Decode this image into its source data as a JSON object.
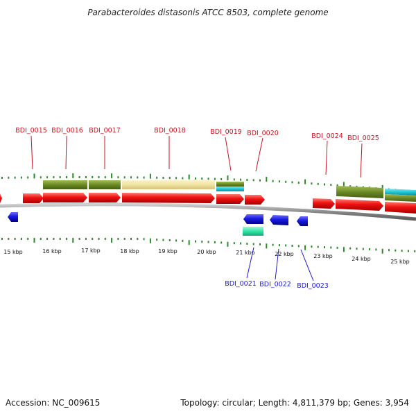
{
  "title": "Parabacteroides distasonis ATCC 8503, complete genome",
  "footer": {
    "accession": "Accession: NC_009615",
    "topology": "Topology: circular; Length: 4,811,379 bp; Genes: 3,954"
  },
  "scale_labels": [
    "15 kbp",
    "16 kbp",
    "17 kbp",
    "18 kbp",
    "19 kbp",
    "20 kbp",
    "21 kbp",
    "22 kbp",
    "23 kbp",
    "24 kbp",
    "25 kbp"
  ],
  "genes_top": [
    "BDI_0015",
    "BDI_0016",
    "BDI_0017",
    "BDI_0018",
    "BDI_0019",
    "BDI_0020",
    "BDI_0024",
    "BDI_0025"
  ],
  "genes_bottom": [
    "BDI_0021",
    "BDI_0022",
    "BDI_0023"
  ],
  "colors": {
    "forward_gene": "#ee1111",
    "reverse_gene": "#1a1ae0",
    "cog_olive": "#6b8a25",
    "cog_khaki": "#efe2a0",
    "cog_cyan": "#22c6d6",
    "cog_green": "#33e6a6",
    "tick_green": "#2a8a2a",
    "top_label": "#c8141e",
    "bottom_label": "#1a1ad0",
    "backbone": "#8a8a8a"
  }
}
